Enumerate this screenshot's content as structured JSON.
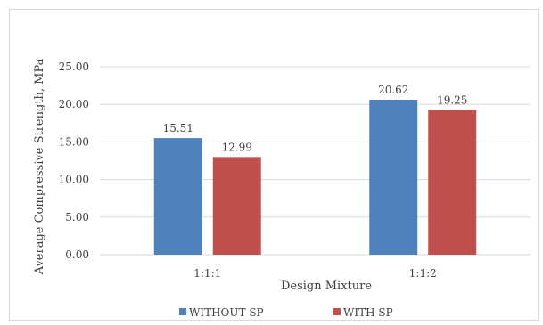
{
  "chart_data": {
    "type": "bar",
    "categories": [
      "1:1:1",
      "1:1:2"
    ],
    "series": [
      {
        "name": "WITHOUT SP",
        "color": "#4f81bd",
        "values": [
          15.51,
          20.62
        ],
        "labels": [
          "15.51",
          "20.62"
        ]
      },
      {
        "name": "WITH SP",
        "color": "#c0504d",
        "values": [
          12.99,
          19.25
        ],
        "labels": [
          "12.99",
          "19.25"
        ]
      }
    ],
    "xlabel": "Design Mixture",
    "ylabel": "Average Compressive Strength, MPa",
    "ylim": [
      0,
      25
    ],
    "yticks": [
      0,
      5,
      10,
      15,
      20,
      25
    ],
    "ytick_labels": [
      "0.00",
      "5.00",
      "10.00",
      "15.00",
      "20.00",
      "25.00"
    ],
    "grid": true,
    "legend_position": "bottom"
  }
}
